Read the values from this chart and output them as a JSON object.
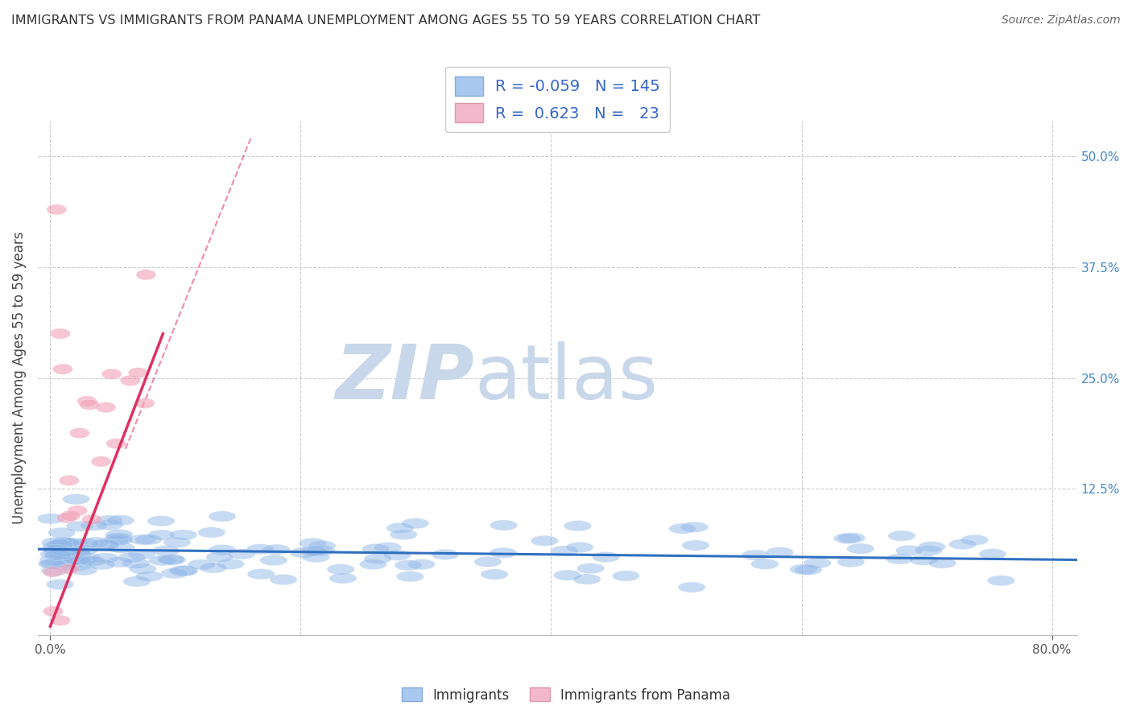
{
  "title": "IMMIGRANTS VS IMMIGRANTS FROM PANAMA UNEMPLOYMENT AMONG AGES 55 TO 59 YEARS CORRELATION CHART",
  "source": "Source: ZipAtlas.com",
  "ylabel": "Unemployment Among Ages 55 to 59 years",
  "xlim": [
    -0.01,
    0.82
  ],
  "ylim": [
    -0.04,
    0.54
  ],
  "ytick_right_labels": [
    "50.0%",
    "37.5%",
    "25.0%",
    "12.5%"
  ],
  "ytick_right_values": [
    0.5,
    0.375,
    0.25,
    0.125
  ],
  "legend_R1": "-0.059",
  "legend_N1": "145",
  "legend_R2": "0.623",
  "legend_N2": "23",
  "background_color": "#ffffff",
  "grid_color": "#cccccc",
  "scatter_blue_color": "#90b8e8",
  "scatter_pink_color": "#f0a0b8",
  "trend_blue_color": "#3070c0",
  "trend_pink_color": "#e03060",
  "watermark_zip": "ZIP",
  "watermark_atlas": "atlas",
  "watermark_color": "#c8d8ea"
}
